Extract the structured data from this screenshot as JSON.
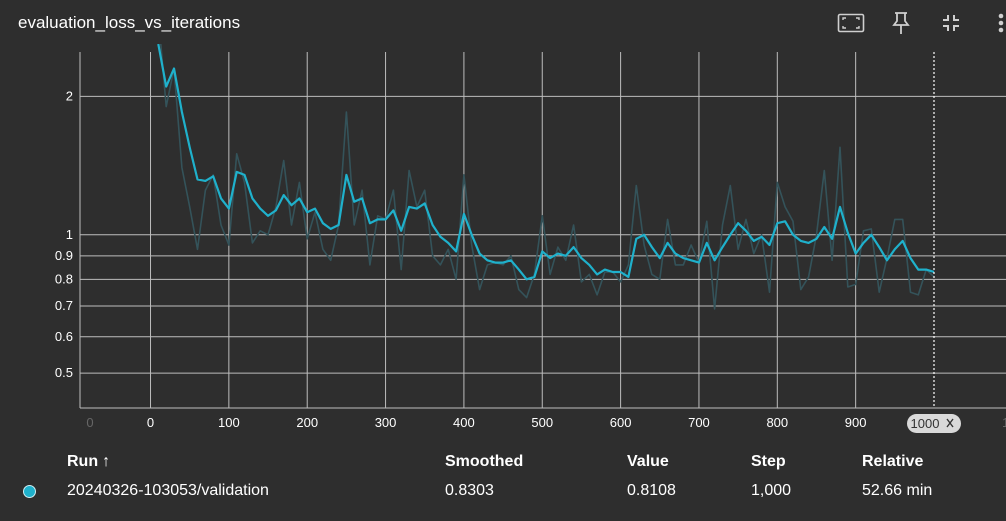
{
  "header": {
    "title": "evaluation_loss_vs_iterations",
    "icons": [
      "fit-to-data-icon",
      "pin-icon",
      "collapse-icon",
      "more-vert-icon"
    ]
  },
  "colors": {
    "background": "#2e2e2e",
    "grid": "#bdbdbd",
    "smoothed": "#1fb1cc",
    "raw": "#34535a",
    "text": "#ffffff"
  },
  "chart_data": {
    "type": "line",
    "title": "evaluation_loss_vs_iterations",
    "xlabel": "",
    "ylabel": "",
    "y_scale": "log",
    "xlim": [
      -90,
      1000
    ],
    "ylim": [
      0.42,
      2.6
    ],
    "x_ticks": [
      0,
      100,
      200,
      300,
      400,
      500,
      600,
      700,
      800,
      900
    ],
    "y_ticks": [
      {
        "v": 2,
        "label": "2"
      },
      {
        "v": 1,
        "label": "1"
      },
      {
        "v": 0.9,
        "label": "0.9"
      },
      {
        "v": 0.8,
        "label": "0.8"
      },
      {
        "v": 0.7,
        "label": "0.7"
      },
      {
        "v": 0.6,
        "label": "0.6"
      },
      {
        "v": 0.5,
        "label": "0.5"
      }
    ],
    "faint_left_tick_label": "0",
    "faint_right_tick_label": "1,",
    "hover_label": "1000",
    "hover_x": 1000,
    "grid": true,
    "x": [
      10,
      20,
      30,
      40,
      50,
      60,
      70,
      80,
      90,
      100,
      110,
      120,
      130,
      140,
      150,
      160,
      170,
      180,
      190,
      200,
      210,
      220,
      230,
      240,
      250,
      260,
      270,
      280,
      290,
      300,
      310,
      320,
      330,
      340,
      350,
      360,
      370,
      380,
      390,
      400,
      410,
      420,
      430,
      440,
      450,
      460,
      470,
      480,
      490,
      500,
      510,
      520,
      530,
      540,
      550,
      560,
      570,
      580,
      590,
      600,
      610,
      620,
      630,
      640,
      650,
      660,
      670,
      680,
      690,
      700,
      710,
      720,
      730,
      740,
      750,
      760,
      770,
      780,
      790,
      800,
      810,
      820,
      830,
      840,
      850,
      860,
      870,
      880,
      890,
      900,
      910,
      920,
      930,
      940,
      950,
      960,
      970,
      980,
      990,
      1000
    ],
    "series": [
      {
        "name": "20240326-103053/validation",
        "role": "raw",
        "values": [
          3.0,
          1.9,
          2.3,
          1.4,
          1.15,
          0.93,
          1.25,
          1.35,
          1.05,
          0.95,
          1.5,
          1.3,
          0.96,
          1.02,
          1.0,
          1.15,
          1.45,
          1.05,
          1.3,
          0.98,
          1.12,
          0.93,
          0.88,
          1.05,
          1.85,
          1.05,
          1.25,
          0.86,
          1.1,
          1.08,
          1.25,
          0.84,
          1.38,
          1.15,
          1.25,
          0.9,
          0.86,
          0.93,
          0.8,
          1.35,
          0.95,
          0.76,
          0.86,
          0.87,
          0.86,
          0.9,
          0.76,
          0.73,
          0.82,
          1.1,
          0.82,
          0.94,
          0.88,
          1.05,
          0.79,
          0.82,
          0.74,
          0.83,
          0.83,
          0.79,
          0.86,
          1.28,
          0.95,
          0.82,
          0.8,
          1.08,
          0.86,
          0.86,
          0.95,
          0.87,
          1.07,
          0.69,
          1.05,
          1.28,
          0.93,
          1.08,
          0.91,
          1.0,
          0.75,
          1.3,
          1.15,
          1.07,
          0.76,
          0.81,
          1.0,
          1.38,
          0.88,
          1.55,
          0.77,
          0.78,
          1.02,
          1.03,
          0.75,
          0.89,
          1.08,
          1.08,
          0.75,
          0.74,
          0.84,
          0.81
        ]
      },
      {
        "name": "20240326-103053/validation",
        "role": "smoothed",
        "values": [
          2.6,
          2.1,
          2.3,
          1.85,
          1.55,
          1.32,
          1.31,
          1.34,
          1.2,
          1.14,
          1.37,
          1.35,
          1.2,
          1.14,
          1.1,
          1.13,
          1.22,
          1.16,
          1.2,
          1.12,
          1.14,
          1.06,
          1.03,
          1.05,
          1.35,
          1.18,
          1.2,
          1.06,
          1.08,
          1.08,
          1.13,
          1.02,
          1.15,
          1.14,
          1.17,
          1.05,
          0.99,
          0.96,
          0.92,
          1.11,
          1.0,
          0.91,
          0.88,
          0.87,
          0.87,
          0.88,
          0.84,
          0.8,
          0.81,
          0.92,
          0.89,
          0.91,
          0.9,
          0.94,
          0.89,
          0.86,
          0.82,
          0.84,
          0.83,
          0.83,
          0.81,
          0.98,
          1.0,
          0.94,
          0.89,
          0.96,
          0.91,
          0.89,
          0.88,
          0.87,
          0.96,
          0.88,
          0.94,
          1.0,
          1.06,
          1.02,
          0.97,
          0.99,
          0.95,
          1.06,
          1.07,
          1.0,
          0.97,
          0.96,
          0.98,
          1.04,
          0.98,
          1.15,
          1.01,
          0.91,
          0.96,
          1.0,
          0.94,
          0.88,
          0.93,
          0.97,
          0.89,
          0.84,
          0.84,
          0.8303
        ]
      }
    ]
  },
  "table": {
    "headers": {
      "run": "Run",
      "run_sort": "↑",
      "smoothed": "Smoothed",
      "value": "Value",
      "step": "Step",
      "relative": "Relative"
    },
    "rows": [
      {
        "run": "20240326-103053/validation",
        "smoothed": "0.8303",
        "value": "0.8108",
        "step": "1,000",
        "relative": "52.66 min"
      }
    ]
  }
}
